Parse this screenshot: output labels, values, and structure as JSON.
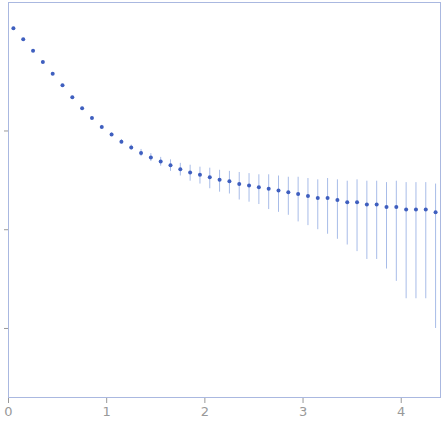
{
  "chart_data": {
    "type": "scatter",
    "x": [
      0.05,
      0.15,
      0.25,
      0.35,
      0.45,
      0.55,
      0.65,
      0.75,
      0.85,
      0.95,
      1.05,
      1.15,
      1.25,
      1.35,
      1.45,
      1.55,
      1.65,
      1.75,
      1.85,
      1.95,
      2.05,
      2.15,
      2.25,
      2.35,
      2.45,
      2.55,
      2.65,
      2.75,
      2.85,
      2.95,
      3.05,
      3.15,
      3.25,
      3.35,
      3.45,
      3.55,
      3.65,
      3.75,
      3.85,
      3.95,
      4.05,
      4.15,
      4.25,
      4.35
    ],
    "values": [
      1.1,
      0.85,
      0.65,
      0.5,
      0.38,
      0.29,
      0.22,
      0.17,
      0.135,
      0.11,
      0.092,
      0.078,
      0.068,
      0.06,
      0.054,
      0.049,
      0.045,
      0.041,
      0.038,
      0.036,
      0.034,
      0.032,
      0.031,
      0.029,
      0.028,
      0.027,
      0.026,
      0.025,
      0.024,
      0.023,
      0.022,
      0.021,
      0.021,
      0.02,
      0.019,
      0.019,
      0.018,
      0.018,
      0.017,
      0.017,
      0.016,
      0.016,
      0.016,
      0.015
    ],
    "error": [
      0.02,
      0.015,
      0.01,
      0.008,
      0.006,
      0.005,
      0.004,
      0.004,
      0.004,
      0.004,
      0.004,
      0.004,
      0.004,
      0.005,
      0.005,
      0.005,
      0.006,
      0.006,
      0.007,
      0.007,
      0.008,
      0.008,
      0.008,
      0.009,
      0.009,
      0.009,
      0.01,
      0.01,
      0.01,
      0.011,
      0.011,
      0.011,
      0.012,
      0.012,
      0.012,
      0.013,
      0.013,
      0.013,
      0.013,
      0.014,
      0.014,
      0.014,
      0.014,
      0.014
    ],
    "color": "#3f5fbf",
    "log": "y",
    "xlim": [
      0,
      4.4
    ],
    "xticks": [
      0,
      1,
      2,
      3,
      4
    ],
    "ylim": [
      0.0002,
      2
    ],
    "yticks": [
      0.1,
      0.01,
      0.001
    ],
    "tick_labels": "x",
    "grid": false,
    "marker": "circle"
  }
}
